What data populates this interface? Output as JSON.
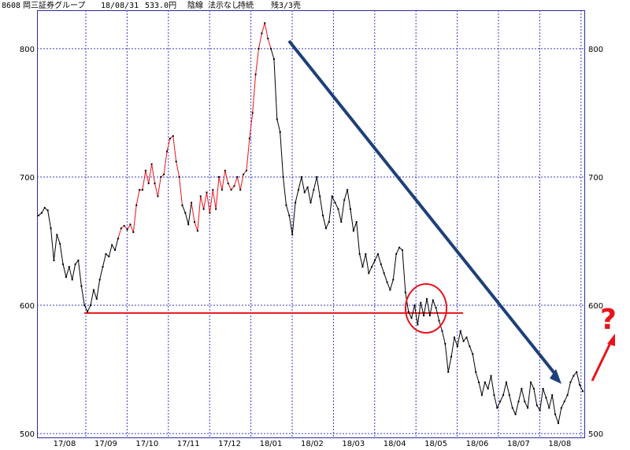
{
  "header": {
    "code": "8608",
    "name": "岡三証券グループ",
    "date": "18/08/31",
    "price": "533.0円",
    "candle": "陰線",
    "signal": "法示なし",
    "trend": "持続",
    "remaining": "残3/3売"
  },
  "annotations": {
    "question_mark": "?",
    "support_level": 594
  },
  "colors": {
    "frame": "#2b2b9a",
    "grid": "#3a3ad0",
    "price_rising": "#e8141b",
    "price_normal": "#000000",
    "support_line": "#e8141b",
    "trend_arrow": "#1e3f7a",
    "circle": "#e8141b",
    "question": "#e8141b"
  },
  "chart_data": {
    "type": "line",
    "title": "",
    "xlabel": "",
    "ylabel": "",
    "ylim": [
      497,
      830
    ],
    "yticks": [
      500,
      600,
      700,
      800
    ],
    "xticks": [
      "17/08",
      "17/09",
      "17/10",
      "17/11",
      "17/12",
      "18/01",
      "18/02",
      "18/03",
      "18/04",
      "18/05",
      "18/06",
      "18/07",
      "18/08"
    ],
    "grid": true,
    "series": [
      {
        "values": [
          670,
          672,
          676,
          674,
          660,
          635,
          655,
          648,
          632,
          622,
          630,
          620,
          632,
          635,
          615,
          600,
          595,
          600,
          612,
          605,
          620,
          630,
          640,
          638,
          647,
          643,
          652,
          660,
          662,
          659,
          663,
          657,
          678,
          690,
          690,
          705,
          695,
          710,
          695,
          685,
          700,
          702,
          720,
          730,
          732,
          712,
          700,
          678,
          672,
          663,
          680,
          665,
          658,
          685,
          675,
          688,
          672,
          690,
          675,
          700,
          690,
          705,
          695,
          690,
          693,
          700,
          690,
          702,
          705,
          730,
          750,
          780,
          800,
          812,
          820,
          808,
          800,
          792,
          745,
          735,
          700,
          678,
          670,
          655,
          680,
          690,
          700,
          688,
          692,
          680,
          690,
          700,
          685,
          670,
          660,
          665,
          685,
          680,
          675,
          665,
          682,
          690,
          675,
          658,
          665,
          640,
          630,
          640,
          625,
          630,
          635,
          640,
          632,
          625,
          618,
          612,
          620,
          640,
          645,
          643,
          610,
          595,
          590,
          600,
          585,
          602,
          592,
          605,
          592,
          604,
          598,
          588,
          580,
          570,
          548,
          560,
          575,
          568,
          580,
          572,
          575,
          568,
          562,
          548,
          540,
          530,
          540,
          535,
          545,
          530,
          520,
          525,
          530,
          540,
          530,
          520,
          515,
          525,
          535,
          525,
          520,
          540,
          535,
          522,
          518,
          535,
          528,
          520,
          530,
          515,
          508,
          520,
          525,
          530,
          540,
          545,
          548,
          538,
          533
        ],
        "red_segments": [
          [
            26,
            47
          ],
          [
            50,
            62
          ],
          [
            62,
            76
          ]
        ]
      }
    ]
  }
}
